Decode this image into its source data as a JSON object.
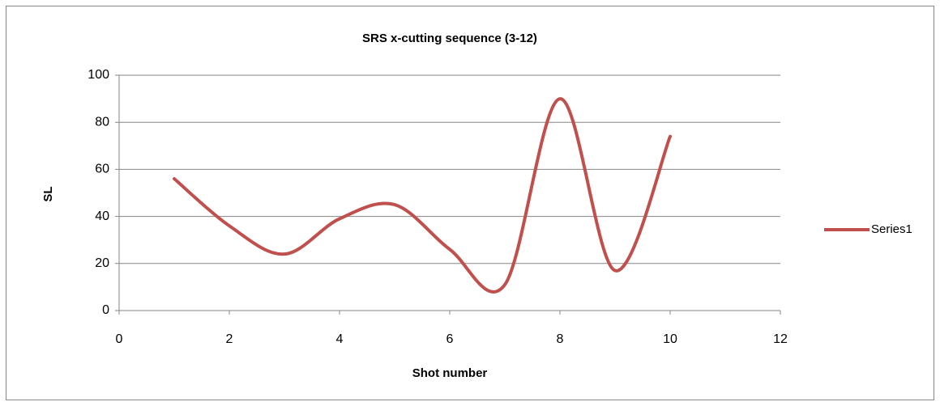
{
  "chart_data": {
    "type": "line",
    "title": "SRS x-cutting sequence (3-12)",
    "x_label": "Shot number",
    "y_label": "SL",
    "x": [
      1,
      2,
      3,
      4,
      5,
      6,
      7,
      8,
      9,
      10
    ],
    "series": [
      {
        "name": "Series1",
        "color": "#c0504d",
        "values": [
          56,
          36,
          24,
          39,
          45,
          26,
          11,
          90,
          17,
          74
        ]
      }
    ],
    "xlim": [
      0,
      12
    ],
    "xticks": [
      0,
      2,
      4,
      6,
      8,
      10,
      12
    ],
    "ylim": [
      0,
      100
    ],
    "yticks": [
      0,
      20,
      40,
      60,
      80,
      100
    ],
    "grid": true,
    "smooth": true,
    "legend": "right"
  }
}
